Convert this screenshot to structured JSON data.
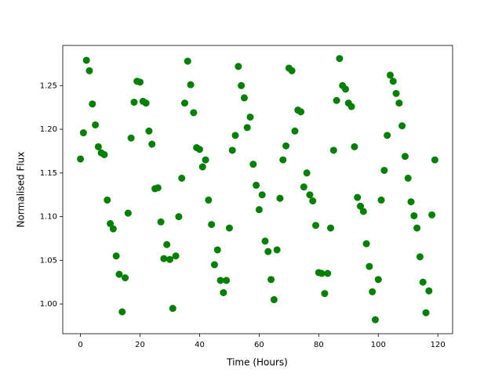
{
  "chart_data": {
    "type": "scatter",
    "x_label": "Time (Hours)",
    "y_label": "Normalised Flux",
    "color": "#008000",
    "x": [
      0,
      1,
      2,
      3,
      4,
      5,
      6,
      7,
      8,
      9,
      10,
      11,
      12,
      13,
      14,
      15,
      16,
      17,
      18,
      19,
      20,
      21,
      22,
      23,
      24,
      25,
      26,
      27,
      28,
      29,
      30,
      31,
      32,
      33,
      34,
      35,
      36,
      37,
      38,
      39,
      40,
      41,
      42,
      43,
      44,
      45,
      46,
      47,
      48,
      49,
      50,
      51,
      52,
      53,
      54,
      55,
      56,
      57,
      58,
      59,
      60,
      61,
      62,
      63,
      64,
      65,
      66,
      67,
      68,
      69,
      70,
      71,
      72,
      73,
      74,
      75,
      76,
      77,
      78,
      79,
      80,
      81,
      82,
      83,
      84,
      85,
      86,
      87,
      88,
      89,
      90,
      91,
      92,
      93,
      94,
      95,
      96,
      97,
      98,
      99,
      100,
      101,
      102,
      103,
      104,
      105,
      106,
      107,
      108,
      109,
      110,
      111,
      112,
      113,
      114,
      115,
      116,
      117,
      118,
      119
    ],
    "values": [
      1.166,
      1.196,
      1.279,
      1.267,
      1.229,
      1.205,
      1.18,
      1.173,
      1.171,
      1.119,
      1.092,
      1.086,
      1.055,
      1.034,
      0.991,
      1.03,
      1.104,
      1.19,
      1.231,
      1.255,
      1.254,
      1.232,
      1.23,
      1.198,
      1.183,
      1.132,
      1.133,
      1.094,
      1.052,
      1.068,
      1.051,
      0.995,
      1.055,
      1.1,
      1.144,
      1.23,
      1.278,
      1.251,
      1.219,
      1.179,
      1.177,
      1.157,
      1.165,
      1.119,
      1.091,
      1.045,
      1.062,
      1.027,
      1.013,
      1.027,
      1.087,
      1.176,
      1.193,
      1.272,
      1.25,
      1.236,
      1.202,
      1.214,
      1.16,
      1.136,
      1.108,
      1.125,
      1.072,
      1.06,
      1.028,
      1.005,
      1.062,
      1.121,
      1.165,
      1.181,
      1.27,
      1.267,
      1.198,
      1.222,
      1.22,
      1.134,
      1.15,
      1.125,
      1.118,
      1.09,
      1.036,
      1.035,
      1.012,
      1.035,
      1.087,
      1.176,
      1.233,
      1.281,
      1.25,
      1.246,
      1.23,
      1.226,
      1.18,
      1.122,
      1.112,
      1.106,
      1.069,
      1.043,
      1.014,
      0.982,
      1.028,
      1.119,
      1.153,
      1.193,
      1.262,
      1.255,
      1.241,
      1.23,
      1.204,
      1.169,
      1.144,
      1.117,
      1.101,
      1.087,
      1.054,
      1.025,
      0.99,
      1.015,
      1.102,
      1.165
    ],
    "xlim": [
      -5.95,
      124.95
    ],
    "ylim": [
      0.966,
      1.296
    ],
    "xticks": [
      0,
      20,
      40,
      60,
      80,
      100,
      120
    ],
    "yticks": [
      {
        "value": 1.0,
        "label": "1.00"
      },
      {
        "value": 1.05,
        "label": "1.05"
      },
      {
        "value": 1.1,
        "label": "1.10"
      },
      {
        "value": 1.15,
        "label": "1.15"
      },
      {
        "value": 1.2,
        "label": "1.20"
      },
      {
        "value": 1.25,
        "label": "1.25"
      }
    ]
  }
}
